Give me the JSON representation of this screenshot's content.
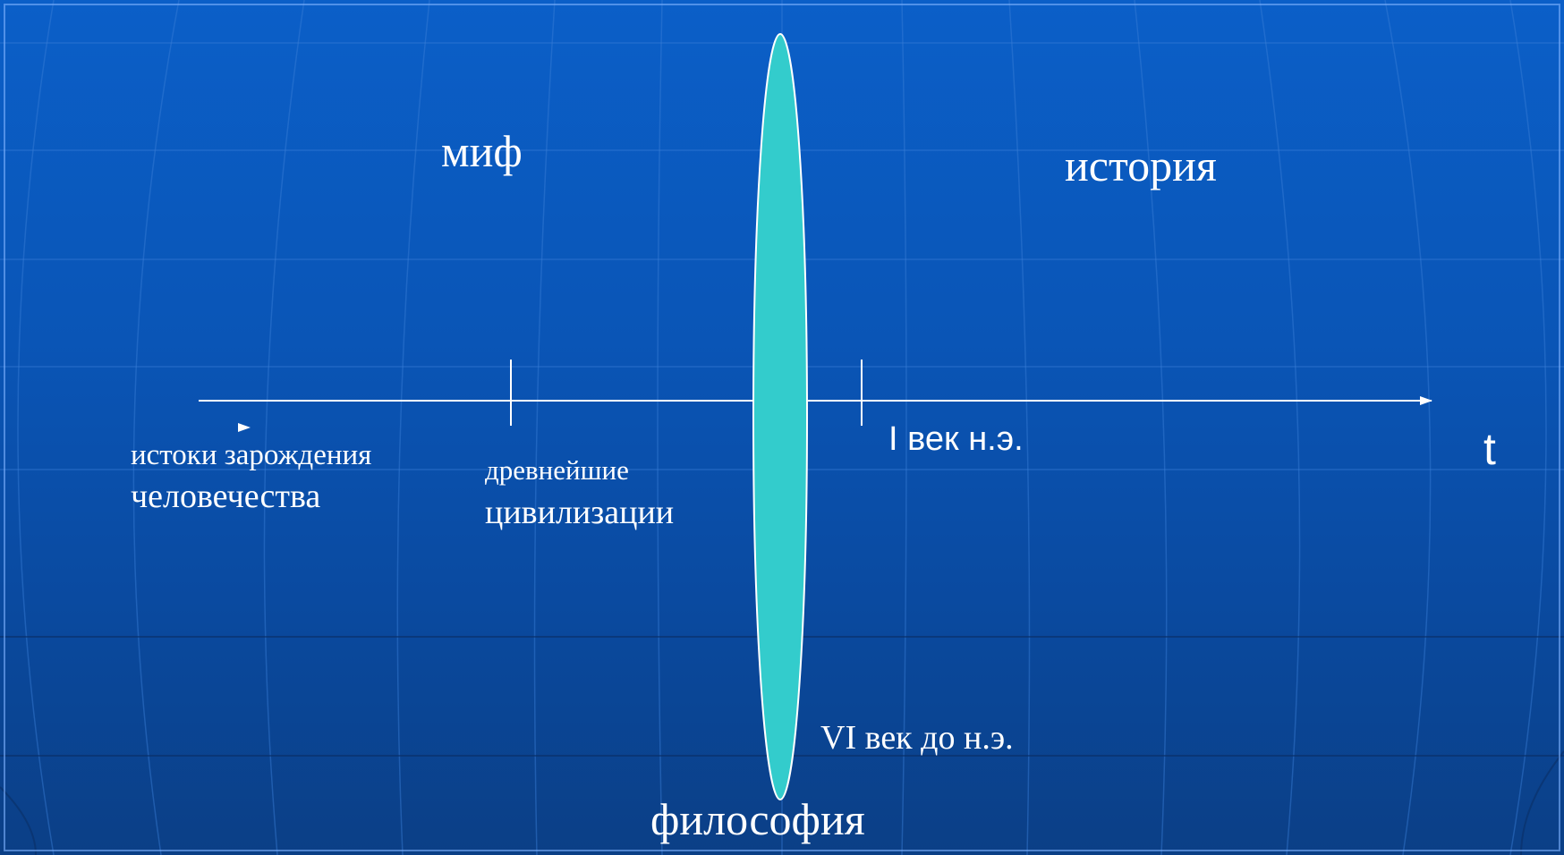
{
  "labels": {
    "myth": "миф",
    "history": "история",
    "philosophy": "философия",
    "origins_line1": "истоки зарождения",
    "origins_line2": "человечества",
    "civilizations_line1": "древнейшие",
    "civilizations_line2": "цивилизации",
    "first_century": "I век н.э.",
    "sixth_century_bc": "VI век до н.э.",
    "time_axis": "t"
  },
  "colors": {
    "background_top": "#0b5fc8",
    "background_bottom": "#0b3f86",
    "lens_fill": "#33cccc",
    "lines": "#ffffff"
  }
}
